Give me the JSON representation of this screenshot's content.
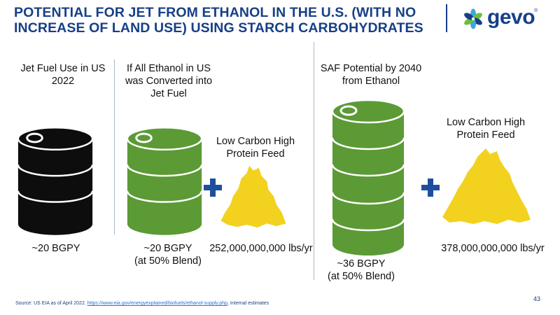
{
  "title": {
    "line1": "POTENTIAL FOR JET FROM ETHANOL IN THE U.S. (WITH NO",
    "line2": "INCREASE OF LAND USE) USING STARCH CARBOHYDRATES"
  },
  "logo": {
    "text": "gevo",
    "icon": "gevo-leaf-logo-icon",
    "brand_color": "#173f87"
  },
  "columns": {
    "jet_fuel": {
      "header_line1": "Jet Fuel Use in US",
      "header_line2": "2022",
      "value": "~20 BGPY",
      "barrel_icon": "black-barrel-icon",
      "color": "#0d0d0d"
    },
    "ethanol_converted": {
      "header_line1": "If All Ethanol in US",
      "header_line2": "was Converted into",
      "header_line3": "Jet Fuel",
      "value_line1": "~20 BGPY",
      "value_line2": "(at 50% Blend)",
      "barrel_icon": "green-barrel-icon",
      "color": "#5b9a35",
      "plus_icon": "plus-icon",
      "feed_line1": "Low Carbon High",
      "feed_line2": "Protein Feed",
      "feed_icon": "protein-feed-pile-icon",
      "feed_value": "252,000,000,000 lbs/yr"
    },
    "saf_2040": {
      "header_line1": "SAF Potential by 2040",
      "header_line2": "from Ethanol",
      "value_line1": "~36 BGPY",
      "value_line2": "(at 50% Blend)",
      "barrel_icon": "large-green-barrel-icon",
      "plus_icon": "plus-icon",
      "feed_line1": "Low Carbon High",
      "feed_line2": "Protein Feed",
      "feed_icon": "protein-feed-pile-icon",
      "feed_value": "378,000,000,000 lbs/yr"
    }
  },
  "colors": {
    "plus": "#1f4f9c",
    "feed": "#f2d21f",
    "title": "#173f87"
  },
  "footer": {
    "prefix": "Source:  US EIA as of April 2022. ",
    "link": "https://www.eia.gov/energyexplained/biofuels/ethanol-supply.php",
    "suffix": ", Internal estimates"
  },
  "page_number": "43"
}
